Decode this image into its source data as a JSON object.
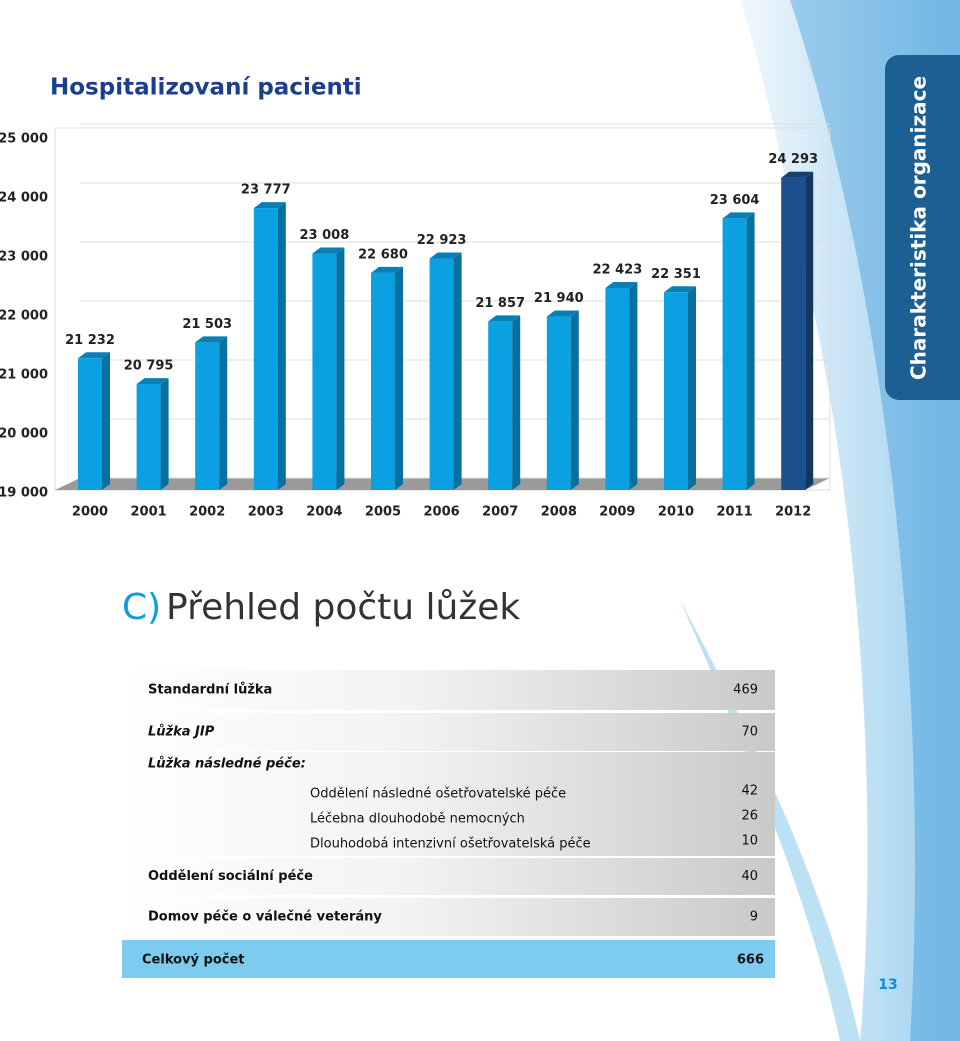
{
  "chart_data": {
    "type": "bar",
    "title": "Hospitalizovaní pacienti",
    "categories": [
      "2000",
      "2001",
      "2002",
      "2003",
      "2004",
      "2005",
      "2006",
      "2007",
      "2008",
      "2009",
      "2010",
      "2011",
      "2012"
    ],
    "values": [
      21232,
      20795,
      21503,
      23777,
      23008,
      22680,
      22923,
      21857,
      21940,
      22423,
      22351,
      23604,
      24293
    ],
    "value_labels": [
      "21 232",
      "20 795",
      "21 503",
      "23 777",
      "23 008",
      "22 680",
      "22 923",
      "21 857",
      "21 940",
      "22 423",
      "22 351",
      "23 604",
      "24 293"
    ],
    "colors": [
      "#0aa0e2",
      "#0aa0e2",
      "#0aa0e2",
      "#0aa0e2",
      "#0aa0e2",
      "#0aa0e2",
      "#0aa0e2",
      "#0aa0e2",
      "#0aa0e2",
      "#0aa0e2",
      "#0aa0e2",
      "#0aa0e2",
      "#1b4f8e"
    ],
    "ylim": [
      19000,
      25000
    ],
    "yticks": [
      {
        "value": 19000,
        "label": "19 000"
      },
      {
        "value": 20000,
        "label": "20 000"
      },
      {
        "value": 21000,
        "label": "21 000"
      },
      {
        "value": 22000,
        "label": "22 000"
      },
      {
        "value": 23000,
        "label": "23 000"
      },
      {
        "value": 24000,
        "label": "24 000"
      },
      {
        "value": 25000,
        "label": "25 000"
      }
    ],
    "grid": true
  },
  "section": {
    "letter": "C)",
    "title": "Přehled počtu lůžek"
  },
  "table": {
    "rows": [
      {
        "label": "Standardní lůžka",
        "value": 469
      },
      {
        "label": "Lůžka JIP",
        "value": 70
      },
      {
        "label": "Lůžka následné péče:",
        "subrows": [
          {
            "label": "Oddělení následné ošetřovatelské péče",
            "value": 42
          },
          {
            "label": "Léčebna dlouhodobě nemocných",
            "value": 26
          },
          {
            "label": "Dlouhodobá intenzivní ošetřovatelská péče",
            "value": 10
          }
        ]
      },
      {
        "label": "Oddělení sociální péče",
        "value": 40
      },
      {
        "label": "Domov péče o válečné veterány",
        "value": 9
      }
    ],
    "total": {
      "label": "Celkový počet",
      "value": 666
    }
  },
  "side_tab": "Charakteristika organizace",
  "page_number": "13"
}
